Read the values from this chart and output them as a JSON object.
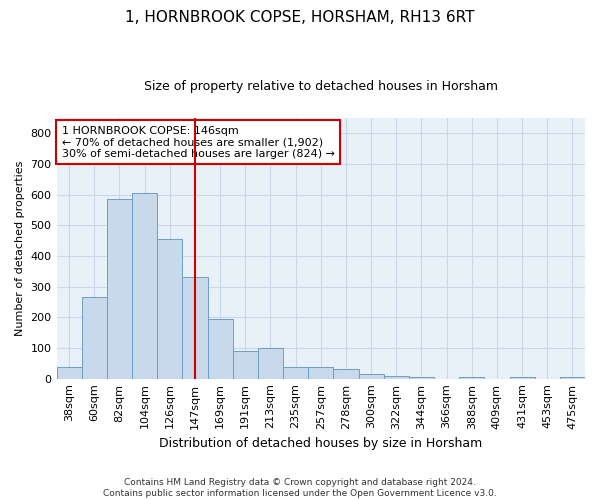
{
  "title": "1, HORNBROOK COPSE, HORSHAM, RH13 6RT",
  "subtitle": "Size of property relative to detached houses in Horsham",
  "xlabel": "Distribution of detached houses by size in Horsham",
  "ylabel": "Number of detached properties",
  "footer_line1": "Contains HM Land Registry data © Crown copyright and database right 2024.",
  "footer_line2": "Contains public sector information licensed under the Open Government Licence v3.0.",
  "categories": [
    "38sqm",
    "60sqm",
    "82sqm",
    "104sqm",
    "126sqm",
    "147sqm",
    "169sqm",
    "191sqm",
    "213sqm",
    "235sqm",
    "257sqm",
    "278sqm",
    "300sqm",
    "322sqm",
    "344sqm",
    "366sqm",
    "388sqm",
    "409sqm",
    "431sqm",
    "453sqm",
    "475sqm"
  ],
  "values": [
    38,
    265,
    585,
    605,
    455,
    330,
    195,
    90,
    100,
    38,
    38,
    32,
    15,
    10,
    5,
    0,
    5,
    0,
    5,
    0,
    5
  ],
  "bar_color": "#c8d9ec",
  "bar_edge_color": "#6b9ec8",
  "red_line_index": 5,
  "annotation_text": "1 HORNBROOK COPSE: 146sqm\n← 70% of detached houses are smaller (1,902)\n30% of semi-detached houses are larger (824) →",
  "annotation_box_facecolor": "#ffffff",
  "annotation_box_edgecolor": "#cc0000",
  "red_line_color": "#cc0000",
  "grid_color": "#c8d8e8",
  "background_color": "#e8f0f8",
  "ylim": [
    0,
    850
  ],
  "yticks": [
    0,
    100,
    200,
    300,
    400,
    500,
    600,
    700,
    800
  ],
  "title_fontsize": 11,
  "subtitle_fontsize": 9,
  "xlabel_fontsize": 9,
  "ylabel_fontsize": 8,
  "tick_fontsize": 8,
  "annot_fontsize": 8,
  "footer_fontsize": 6.5
}
